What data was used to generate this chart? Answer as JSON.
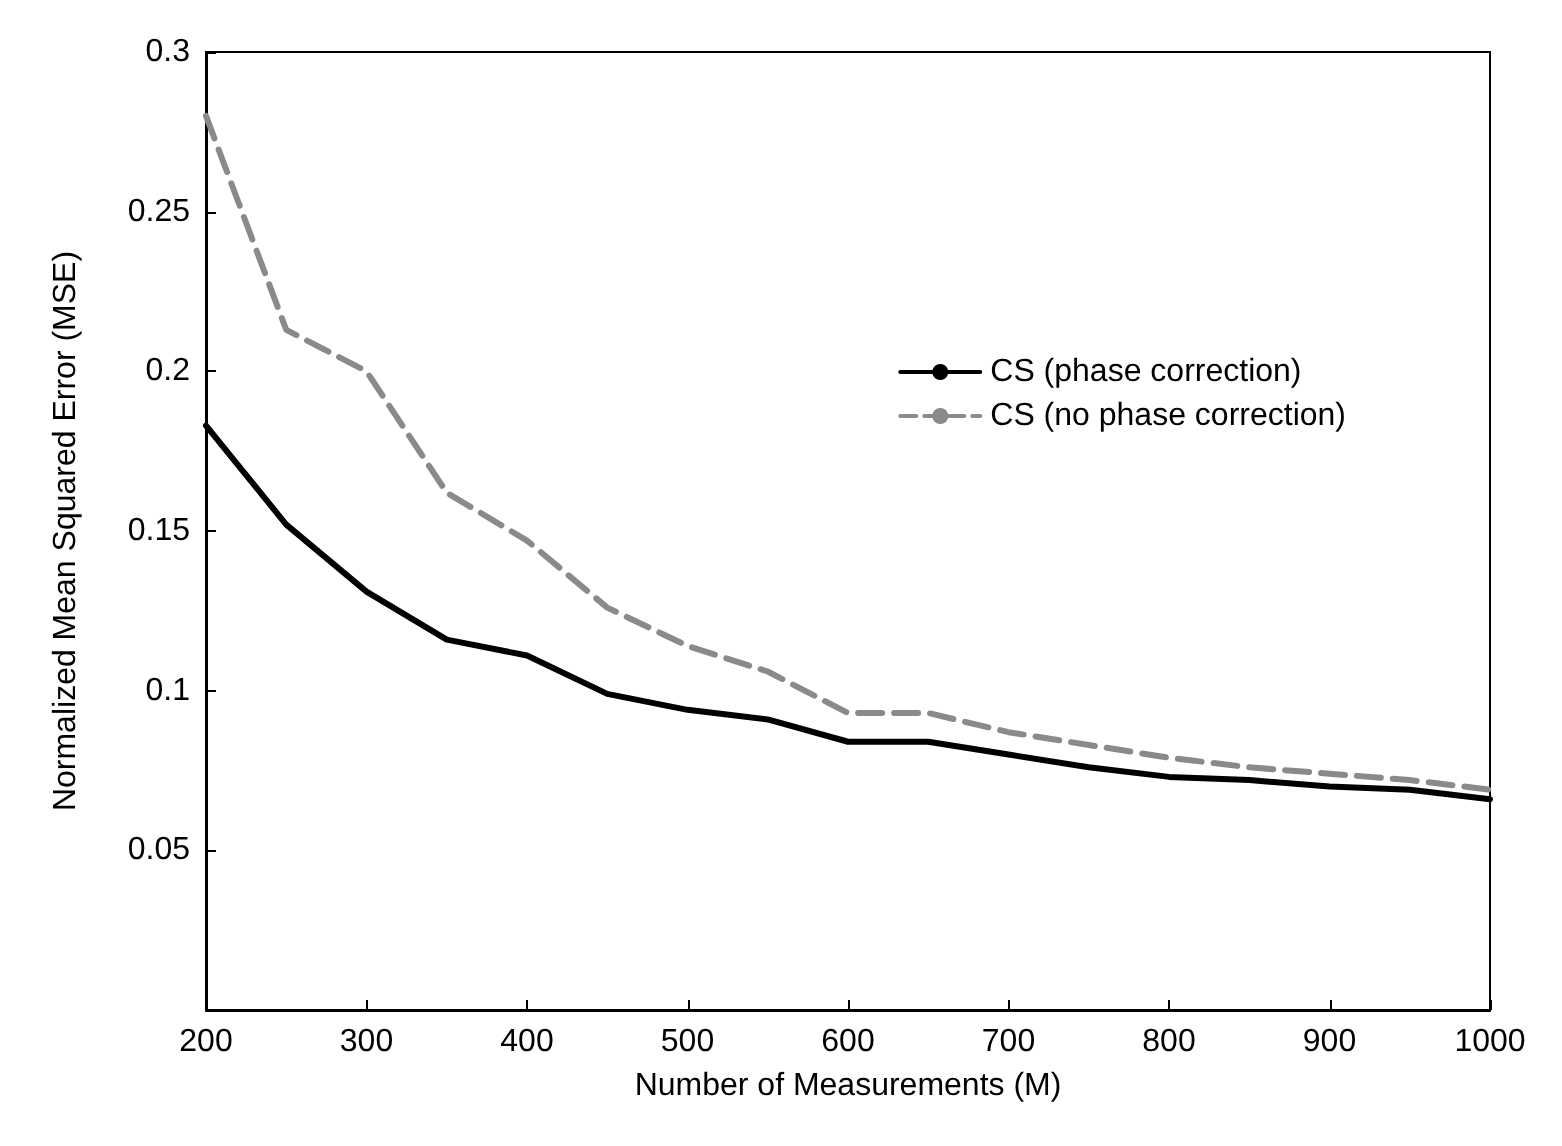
{
  "chart_data": {
    "type": "line",
    "xlabel": "Number of Measurements (M)",
    "ylabel": "Normalized Mean Squared Error (MSE)",
    "x": [
      200,
      250,
      300,
      350,
      400,
      450,
      500,
      550,
      600,
      650,
      700,
      750,
      800,
      850,
      900,
      950,
      1000
    ],
    "series": [
      {
        "name": "CS (phase correction)",
        "color": "#000000",
        "line_style": "solid",
        "values": [
          0.183,
          0.152,
          0.131,
          0.116,
          0.111,
          0.099,
          0.094,
          0.091,
          0.084,
          0.084,
          0.08,
          0.076,
          0.073,
          0.072,
          0.07,
          0.069,
          0.066
        ]
      },
      {
        "name": "CS (no phase correction)",
        "color": "#8a8a8a",
        "line_style": "dashed",
        "values": [
          0.28,
          0.213,
          0.2,
          0.162,
          0.147,
          0.126,
          0.114,
          0.106,
          0.093,
          0.093,
          0.087,
          0.083,
          0.079,
          0.076,
          0.074,
          0.072,
          0.069
        ]
      }
    ],
    "xlim": [
      200,
      1000
    ],
    "xticks": [
      200,
      300,
      400,
      500,
      600,
      700,
      800,
      900,
      1000
    ],
    "ylim": [
      0,
      0.3
    ],
    "yticks": [
      {
        "value": 0,
        "label": null
      },
      0.05,
      0.1,
      0.15,
      0.2,
      0.25,
      0.3
    ],
    "grid": false,
    "legend": "right",
    "marker": "none"
  }
}
